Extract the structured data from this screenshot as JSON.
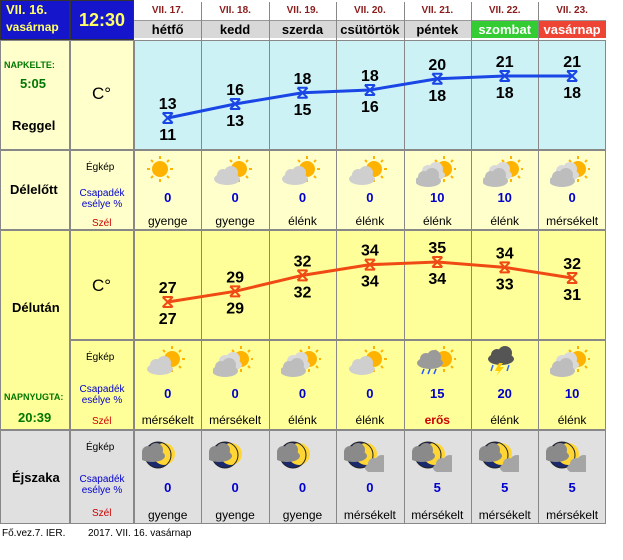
{
  "header": {
    "date": "VII. 16.",
    "weekday": "vasárnap",
    "time": "12:30"
  },
  "days": [
    {
      "date": "VII. 17.",
      "name": "hétfő",
      "style": "normal"
    },
    {
      "date": "VII. 18.",
      "name": "kedd",
      "style": "normal"
    },
    {
      "date": "VII. 19.",
      "name": "szerda",
      "style": "normal"
    },
    {
      "date": "VII. 20.",
      "name": "csütörtök",
      "style": "normal"
    },
    {
      "date": "VII. 21.",
      "name": "péntek",
      "style": "normal"
    },
    {
      "date": "VII. 22.",
      "name": "szombat",
      "style": "saturday"
    },
    {
      "date": "VII. 23.",
      "name": "vasárnap",
      "style": "sunday"
    }
  ],
  "morning": {
    "napkelte_label": "NAPKELTE:",
    "napkelte_time": "5:05",
    "unit": "C°",
    "label": "Reggel",
    "high": [
      13,
      16,
      18,
      18,
      20,
      21,
      21
    ],
    "low": [
      11,
      13,
      15,
      16,
      18,
      18,
      18
    ]
  },
  "forenoon": {
    "label": "Délelőtt",
    "egkep": "Égkép",
    "csapadek": "Csapadék esélye %",
    "szel": "Szél",
    "icons": [
      "sun",
      "partly",
      "partly",
      "partly",
      "cloudy",
      "cloudy",
      "cloudy"
    ],
    "precip": [
      "0",
      "0",
      "0",
      "0",
      "10",
      "10",
      "0"
    ],
    "wind": [
      "gyenge",
      "gyenge",
      "élénk",
      "élénk",
      "élénk",
      "élénk",
      "mérsékelt"
    ]
  },
  "afternoon": {
    "label": "Délután",
    "unit": "C°",
    "egkep": "Égkép",
    "csapadek": "Csapadék esélye %",
    "szel": "Szél",
    "napnyugta_label": "NAPNYUGTA:",
    "napnyugta_time": "20:39",
    "high": [
      27,
      29,
      32,
      34,
      35,
      34,
      32
    ],
    "low": [
      27,
      29,
      32,
      34,
      34,
      33,
      31
    ],
    "icons": [
      "partly",
      "cloudy",
      "cloudy",
      "partly",
      "rain",
      "storm",
      "cloudy"
    ],
    "precip": [
      "0",
      "0",
      "0",
      "0",
      "15",
      "20",
      "10"
    ],
    "wind": [
      "mérsékelt",
      "mérsékelt",
      "élénk",
      "élénk",
      "erős",
      "élénk",
      "élénk"
    ],
    "wind_strong_index": 4
  },
  "night": {
    "label": "Éjszaka",
    "egkep": "Égkép",
    "csapadek": "Csapadék esélye %",
    "szel": "Szél",
    "icons": [
      "moon-cloud",
      "moon-cloud",
      "moon-cloud",
      "moon-clouds",
      "moon-clouds",
      "moon-clouds",
      "moon-clouds"
    ],
    "precip": [
      "0",
      "0",
      "0",
      "0",
      "5",
      "5",
      "5"
    ],
    "wind": [
      "gyenge",
      "gyenge",
      "gyenge",
      "mérsékelt",
      "mérsékelt",
      "mérsékelt",
      "mérsékelt"
    ]
  },
  "footer": {
    "left": "Fő.vez.7. IER.",
    "right": "2017. VII. 16. vasárnap"
  },
  "colors": {
    "morning_bg": "#CCF2F6",
    "noon_bg": "#FFFFCC",
    "afternoon_bg": "#FFFF99",
    "night_bg": "#E0E0E0",
    "line_morning": "#1a46e6",
    "line_afternoon": "#f04a14",
    "header_bg": "#1515cc",
    "saturday_bg": "#33cc33",
    "sunday_bg": "#ee4433"
  }
}
